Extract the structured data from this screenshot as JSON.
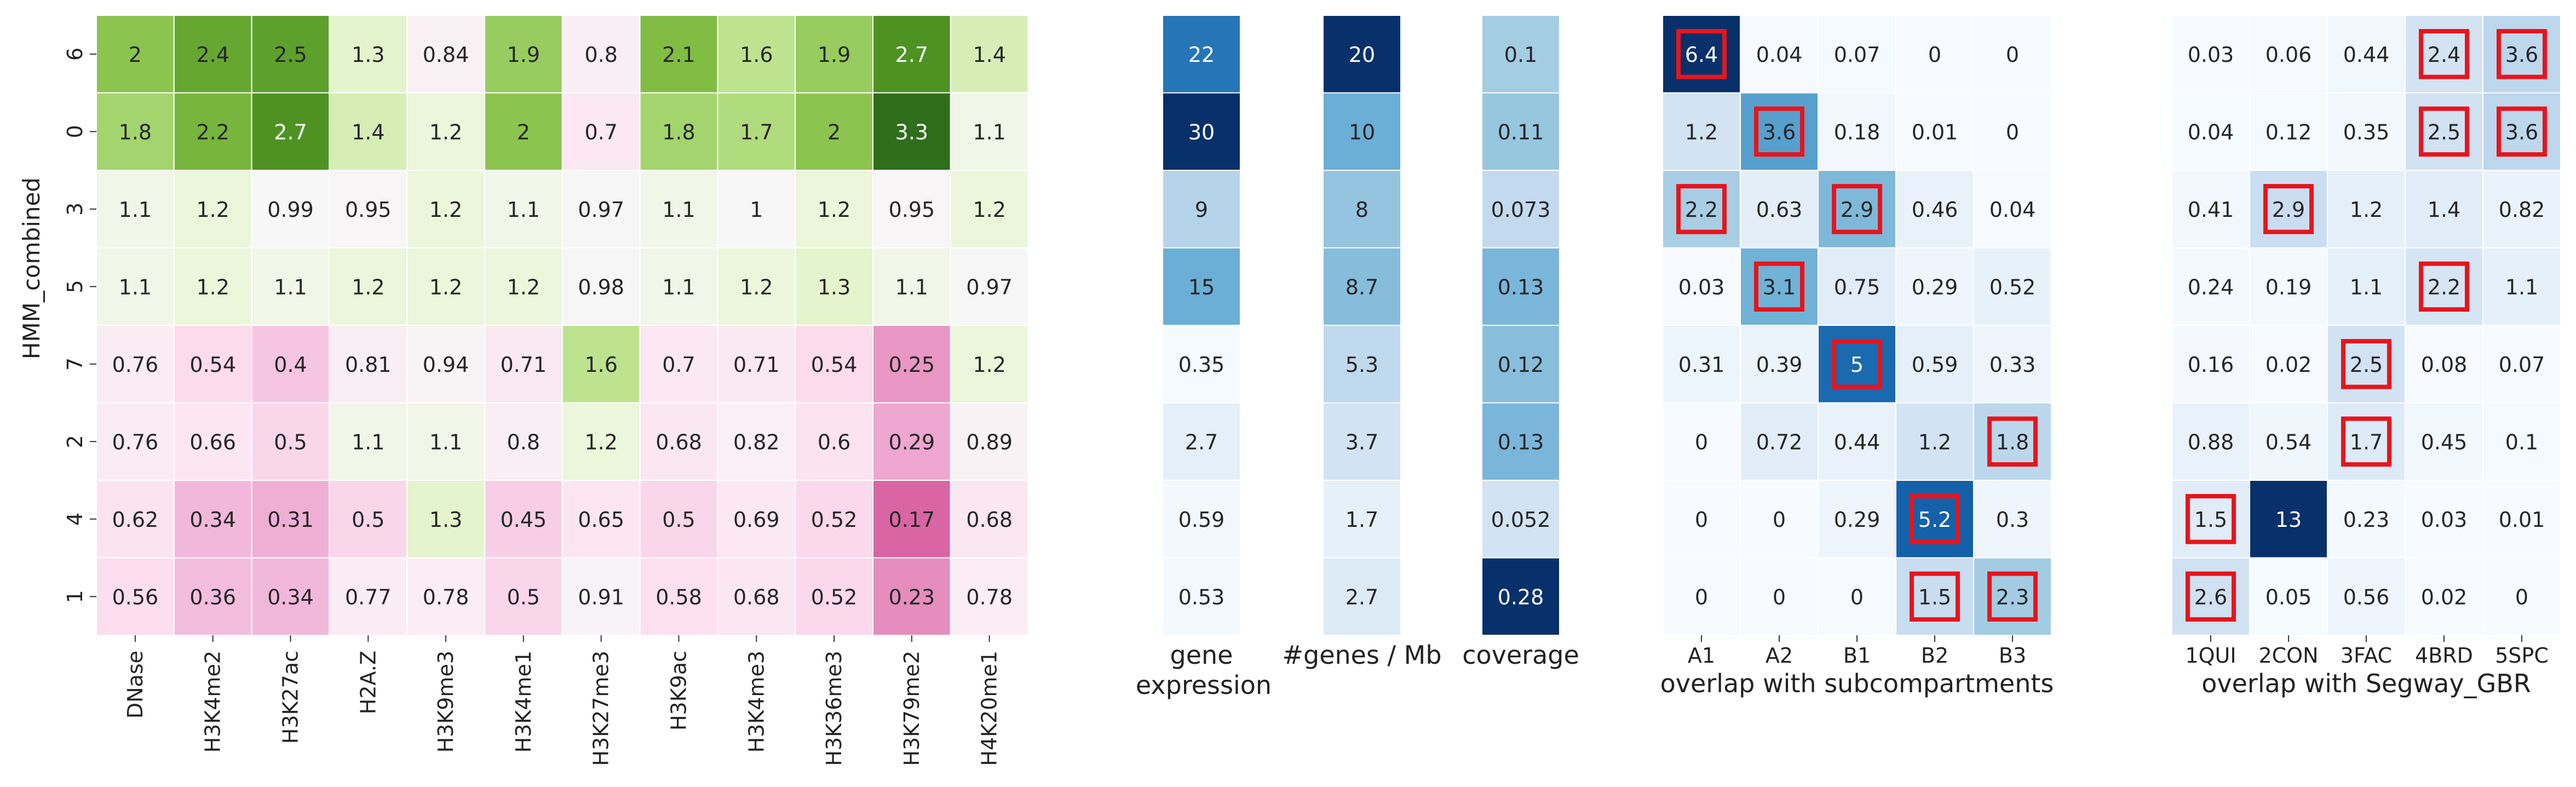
{
  "chart_data": [
    {
      "type": "heatmap",
      "ylabel": "HMM_combined",
      "rows": [
        "6",
        "0",
        "3",
        "5",
        "7",
        "2",
        "4",
        "1"
      ],
      "columns": [
        "DNase",
        "H3K4me2",
        "H3K27ac",
        "H2A.Z",
        "H3K9me3",
        "H3K4me1",
        "H3K27me3",
        "H3K9ac",
        "H3K4me3",
        "H3K36me3",
        "H3K79me2",
        "H4K20me1"
      ],
      "values": [
        [
          2,
          2.4,
          2.5,
          1.3,
          0.84,
          1.9,
          0.8,
          2.1,
          1.6,
          1.9,
          2.7,
          1.4
        ],
        [
          1.8,
          2.2,
          2.7,
          1.4,
          1.2,
          2,
          0.7,
          1.8,
          1.7,
          2,
          3.3,
          1.1
        ],
        [
          1.1,
          1.2,
          0.99,
          0.95,
          1.2,
          1.1,
          0.97,
          1.1,
          1,
          1.2,
          0.95,
          1.2
        ],
        [
          1.1,
          1.2,
          1.1,
          1.2,
          1.2,
          1.2,
          0.98,
          1.1,
          1.2,
          1.3,
          1.1,
          0.97
        ],
        [
          0.76,
          0.54,
          0.4,
          0.81,
          0.94,
          0.71,
          1.6,
          0.7,
          0.71,
          0.54,
          0.25,
          1.2
        ],
        [
          0.76,
          0.66,
          0.5,
          1.1,
          1.1,
          0.8,
          1.2,
          0.68,
          0.82,
          0.6,
          0.29,
          0.89
        ],
        [
          0.62,
          0.34,
          0.31,
          0.5,
          1.3,
          0.45,
          0.65,
          0.5,
          0.69,
          0.52,
          0.17,
          0.68
        ],
        [
          0.56,
          0.36,
          0.34,
          0.77,
          0.78,
          0.5,
          0.91,
          0.58,
          0.68,
          0.52,
          0.23,
          0.78
        ]
      ],
      "colormap": "PiYG diverging, centered at 1"
    },
    {
      "type": "heatmap",
      "xlabel": "gene expression",
      "values": [
        22,
        30,
        9,
        15,
        0.35,
        2.7,
        0.59,
        0.53
      ],
      "colormap": "Blues"
    },
    {
      "type": "heatmap",
      "xlabel": "#genes / Mb",
      "values": [
        20,
        10,
        8,
        8.7,
        5.3,
        3.7,
        1.7,
        2.7
      ],
      "colormap": "Blues"
    },
    {
      "type": "heatmap",
      "xlabel": "coverage",
      "values": [
        0.1,
        0.11,
        0.073,
        0.13,
        0.12,
        0.13,
        0.052,
        0.28
      ],
      "colormap": "Blues"
    },
    {
      "type": "heatmap",
      "xlabel": "overlap with subcompartments",
      "columns": [
        "A1",
        "A2",
        "B1",
        "B2",
        "B3"
      ],
      "values": [
        [
          6.4,
          0.04,
          0.07,
          0,
          0
        ],
        [
          1.2,
          3.6,
          0.18,
          0.01,
          0
        ],
        [
          2.2,
          0.63,
          2.9,
          0.46,
          0.04
        ],
        [
          0.03,
          3.1,
          0.75,
          0.29,
          0.52
        ],
        [
          0.31,
          0.39,
          5,
          0.59,
          0.33
        ],
        [
          0,
          0.72,
          0.44,
          1.2,
          1.8
        ],
        [
          0,
          0,
          0.29,
          5.2,
          0.3
        ],
        [
          0,
          0,
          0,
          1.5,
          2.3
        ]
      ],
      "highlighted": [
        [
          0,
          0
        ],
        [
          1,
          1
        ],
        [
          2,
          0
        ],
        [
          2,
          2
        ],
        [
          3,
          1
        ],
        [
          4,
          2
        ],
        [
          5,
          4
        ],
        [
          6,
          3
        ],
        [
          7,
          3
        ],
        [
          7,
          4
        ]
      ],
      "colormap": "Blues"
    },
    {
      "type": "heatmap",
      "xlabel": "overlap with Segway_GBR",
      "columns": [
        "1QUI",
        "2CON",
        "3FAC",
        "4BRD",
        "5SPC"
      ],
      "values": [
        [
          0.03,
          0.06,
          0.44,
          2.4,
          3.6
        ],
        [
          0.04,
          0.12,
          0.35,
          2.5,
          3.6
        ],
        [
          0.41,
          2.9,
          1.2,
          1.4,
          0.82
        ],
        [
          0.24,
          0.19,
          1.1,
          2.2,
          1.1
        ],
        [
          0.16,
          0.02,
          2.5,
          0.08,
          0.07
        ],
        [
          0.88,
          0.54,
          1.7,
          0.45,
          0.1
        ],
        [
          1.5,
          13,
          0.23,
          0.03,
          0.01
        ],
        [
          2.6,
          0.05,
          0.56,
          0.02,
          0
        ]
      ],
      "highlighted": [
        [
          0,
          3
        ],
        [
          0,
          4
        ],
        [
          1,
          3
        ],
        [
          1,
          4
        ],
        [
          2,
          1
        ],
        [
          3,
          3
        ],
        [
          4,
          2
        ],
        [
          5,
          2
        ],
        [
          6,
          0
        ],
        [
          7,
          0
        ]
      ],
      "colormap": "Blues"
    }
  ],
  "colors": {
    "highlight_box": "#e8141c",
    "cell_border": "#ffffff"
  }
}
